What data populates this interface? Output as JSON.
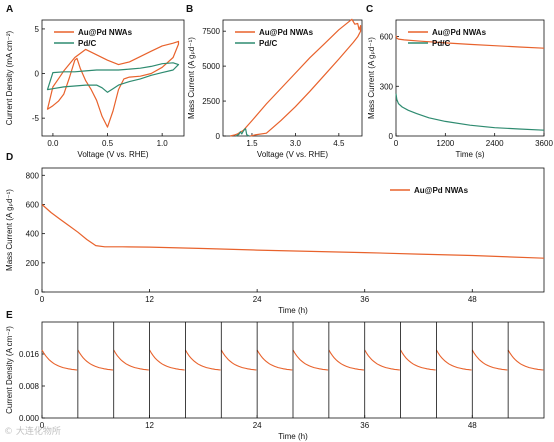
{
  "figure": {
    "watermark": "© 大连化物所"
  },
  "colors": {
    "orange": "#e8622c",
    "teal": "#2e8b70",
    "axis": "#111111"
  },
  "chart_data": [
    {
      "id": "A",
      "type": "line",
      "panel_label": "A",
      "xlabel": "Voltage (V vs. RHE)",
      "ylabel": "Current Density (mA cm⁻²)",
      "xlim": [
        -0.1,
        1.2
      ],
      "ylim": [
        -7,
        6
      ],
      "xticks": [
        {
          "v": 0.0,
          "label": "0.0"
        },
        {
          "v": 0.5,
          "label": "0.5"
        },
        {
          "v": 1.0,
          "label": "1.0"
        }
      ],
      "yticks": [
        {
          "v": -5,
          "label": "-5"
        },
        {
          "v": 0,
          "label": "0"
        },
        {
          "v": 5,
          "label": "5"
        }
      ],
      "legend": [
        "Au@Pd NWAs",
        "Pd/C"
      ],
      "series": [
        {
          "name": "Au@Pd NWAs",
          "color": "orange",
          "closed": true,
          "x": [
            -0.05,
            0.0,
            0.05,
            0.1,
            0.15,
            0.2,
            0.22,
            0.25,
            0.3,
            0.35,
            0.4,
            0.45,
            0.5,
            0.55,
            0.6,
            0.65,
            0.7,
            0.8,
            0.9,
            1.0,
            1.1,
            1.15,
            1.15,
            1.1,
            1.0,
            0.9,
            0.8,
            0.7,
            0.6,
            0.5,
            0.4,
            0.3,
            0.2,
            0.1,
            0.05,
            0.0,
            -0.05
          ],
          "y": [
            -4.0,
            -3.6,
            -3.1,
            -2.3,
            -0.5,
            1.5,
            1.7,
            0.6,
            -0.8,
            -1.8,
            -3.0,
            -4.8,
            -6.0,
            -4.2,
            -1.8,
            -0.6,
            -0.4,
            -0.3,
            0.0,
            0.7,
            1.8,
            3.3,
            3.6,
            3.4,
            3.1,
            2.5,
            1.9,
            1.3,
            1.0,
            1.5,
            2.1,
            2.7,
            1.8,
            0.3,
            -0.6,
            -1.5,
            -4.0
          ]
        },
        {
          "name": "Pd/C",
          "color": "teal",
          "closed": true,
          "x": [
            -0.05,
            0.0,
            0.1,
            0.2,
            0.3,
            0.4,
            0.45,
            0.5,
            0.55,
            0.6,
            0.7,
            0.8,
            0.9,
            1.0,
            1.1,
            1.15,
            1.1,
            1.0,
            0.9,
            0.8,
            0.7,
            0.6,
            0.5,
            0.4,
            0.3,
            0.2,
            0.1,
            0.0,
            -0.05
          ],
          "y": [
            -1.8,
            -1.7,
            -1.5,
            -1.4,
            -1.3,
            -1.3,
            -1.6,
            -2.1,
            -1.7,
            -1.3,
            -0.9,
            -0.6,
            -0.2,
            0.1,
            0.4,
            1.0,
            1.2,
            1.1,
            0.8,
            0.6,
            0.5,
            0.4,
            0.4,
            0.4,
            0.3,
            0.2,
            0.2,
            0.1,
            -1.8
          ]
        }
      ]
    },
    {
      "id": "B",
      "type": "line",
      "panel_label": "B",
      "xlabel": "Voltage (V vs. RHE)",
      "ylabel": "Mass Current (A gₚd⁻¹)",
      "xlim": [
        0.5,
        5.3
      ],
      "ylim": [
        0,
        8300
      ],
      "xticks": [
        {
          "v": 1.5,
          "label": "1.5"
        },
        {
          "v": 3.0,
          "label": "3.0"
        },
        {
          "v": 4.5,
          "label": "4.5"
        }
      ],
      "yticks": [
        {
          "v": 0,
          "label": "0"
        },
        {
          "v": 2500,
          "label": "2500"
        },
        {
          "v": 5000,
          "label": "5000"
        },
        {
          "v": 7500,
          "label": "7500"
        }
      ],
      "legend": [
        "Au@Pd NWAs",
        "Pd/C"
      ],
      "series": [
        {
          "name": "Au@Pd NWAs",
          "color": "orange",
          "closed": false,
          "x": [
            0.75,
            0.9,
            1.0,
            1.2,
            1.5,
            2.0,
            2.5,
            3.0,
            3.5,
            4.0,
            4.5,
            4.8,
            4.95,
            5.05,
            5.15,
            5.2,
            5.25,
            5.25,
            5.15,
            5.0,
            4.5,
            4.0,
            3.5,
            3.0,
            2.5,
            2.0,
            1.6,
            1.5,
            1.45
          ],
          "y": [
            0,
            80,
            150,
            400,
            1100,
            2300,
            3400,
            4500,
            5600,
            6600,
            7600,
            8100,
            8350,
            8000,
            8050,
            7600,
            7900,
            7500,
            7100,
            6700,
            5500,
            4350,
            3200,
            2100,
            1100,
            200,
            80,
            20,
            0
          ]
        },
        {
          "name": "Pd/C",
          "color": "teal",
          "closed": false,
          "x": [
            0.95,
            1.05,
            1.1,
            1.15,
            1.2,
            1.25,
            1.28,
            1.32,
            1.35,
            1.4
          ],
          "y": [
            0,
            120,
            300,
            150,
            350,
            480,
            520,
            100,
            60,
            0
          ]
        }
      ]
    },
    {
      "id": "C",
      "type": "line",
      "panel_label": "C",
      "xlabel": "Time (s)",
      "ylabel": "Mass Current (A gₚd⁻¹)",
      "xlim": [
        0,
        3600
      ],
      "ylim": [
        0,
        700
      ],
      "xticks": [
        {
          "v": 0,
          "label": "0"
        },
        {
          "v": 1200,
          "label": "1200"
        },
        {
          "v": 2400,
          "label": "2400"
        },
        {
          "v": 3600,
          "label": "3600"
        }
      ],
      "yticks": [
        {
          "v": 0,
          "label": "0"
        },
        {
          "v": 300,
          "label": "300"
        },
        {
          "v": 600,
          "label": "600"
        }
      ],
      "legend": [
        "Au@Pd NWAs",
        "Pd/C"
      ],
      "series": [
        {
          "name": "Au@Pd NWAs",
          "color": "orange",
          "closed": false,
          "x": [
            0,
            20,
            60,
            200,
            600,
            1200,
            1800,
            2400,
            3000,
            3600
          ],
          "y": [
            605,
            590,
            585,
            580,
            572,
            562,
            553,
            545,
            537,
            530
          ]
        },
        {
          "name": "Pd/C",
          "color": "teal",
          "closed": false,
          "x": [
            0,
            20,
            60,
            150,
            300,
            500,
            800,
            1200,
            1800,
            2400,
            3000,
            3600
          ],
          "y": [
            255,
            220,
            195,
            175,
            155,
            135,
            110,
            88,
            65,
            50,
            42,
            35
          ]
        }
      ]
    },
    {
      "id": "D",
      "type": "line",
      "panel_label": "D",
      "xlabel": "Time (h)",
      "ylabel": "Mass Current (A gₚd⁻¹)",
      "xlim": [
        0,
        56
      ],
      "ylim": [
        0,
        850
      ],
      "xticks": [
        {
          "v": 0,
          "label": "0"
        },
        {
          "v": 12,
          "label": "12"
        },
        {
          "v": 24,
          "label": "24"
        },
        {
          "v": 36,
          "label": "36"
        },
        {
          "v": 48,
          "label": "48"
        }
      ],
      "yticks": [
        {
          "v": 0,
          "label": "0"
        },
        {
          "v": 200,
          "label": "200"
        },
        {
          "v": 400,
          "label": "400"
        },
        {
          "v": 600,
          "label": "600"
        },
        {
          "v": 800,
          "label": "800"
        }
      ],
      "legend": [
        "Au@Pd NWAs"
      ],
      "series": [
        {
          "name": "Au@Pd NWAs",
          "color": "orange",
          "closed": false,
          "x": [
            0,
            1,
            2,
            3,
            4,
            5,
            6,
            7,
            9,
            12,
            18,
            24,
            30,
            36,
            42,
            48,
            56
          ],
          "y": [
            600,
            545,
            500,
            455,
            410,
            360,
            318,
            310,
            310,
            308,
            298,
            287,
            278,
            270,
            260,
            250,
            232
          ]
        }
      ]
    },
    {
      "id": "E",
      "type": "line",
      "panel_label": "E",
      "xlabel": "Time (h)",
      "ylabel": "Current Density (A cm⁻²)",
      "xlim": [
        0,
        56
      ],
      "ylim": [
        0,
        0.024
      ],
      "xticks": [
        {
          "v": 0,
          "label": "0"
        },
        {
          "v": 12,
          "label": "12"
        },
        {
          "v": 24,
          "label": "24"
        },
        {
          "v": 36,
          "label": "36"
        },
        {
          "v": 48,
          "label": "48"
        }
      ],
      "yticks": [
        {
          "v": 0,
          "label": "0.000"
        },
        {
          "v": 0.008,
          "label": "0.008"
        },
        {
          "v": 0.016,
          "label": "0.016"
        }
      ],
      "cycle_hours": 4,
      "cycle_start": 0.017,
      "cycle_end": 0.012,
      "cycles": 14,
      "series": [
        {
          "name": "",
          "color": "orange",
          "closed": false,
          "x": [],
          "y": []
        }
      ]
    }
  ]
}
